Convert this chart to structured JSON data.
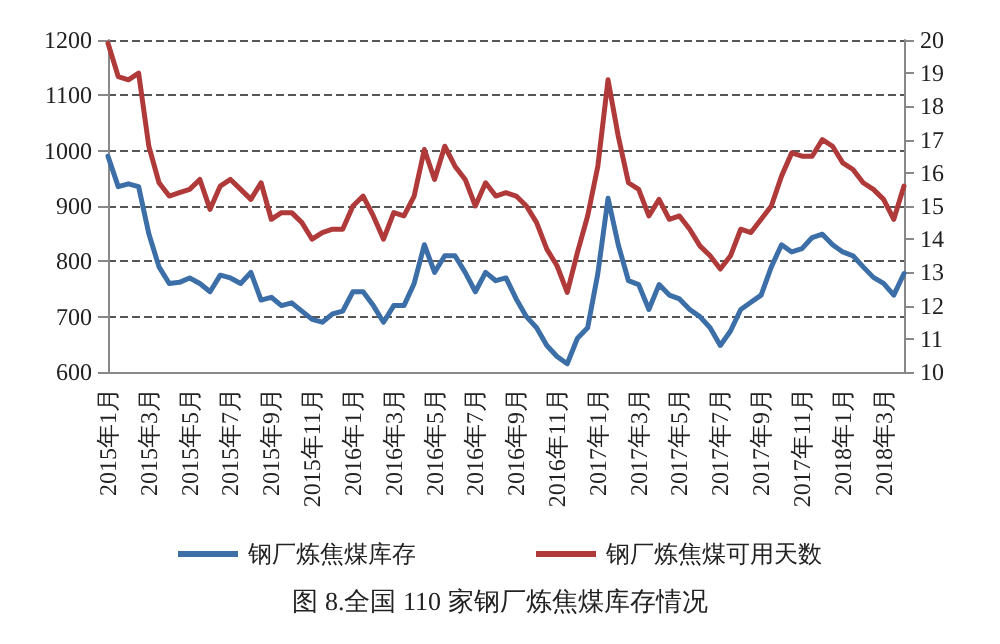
{
  "chart_data": {
    "type": "line",
    "title": "图 8.全国 110 家钢厂炼焦煤库存情况",
    "categories": [
      "2015年1月",
      null,
      null,
      null,
      "2015年3月",
      null,
      null,
      null,
      "2015年5月",
      null,
      null,
      null,
      "2015年7月",
      null,
      null,
      null,
      "2015年9月",
      null,
      null,
      null,
      "2015年11月",
      null,
      null,
      null,
      "2016年1月",
      null,
      null,
      null,
      "2016年3月",
      null,
      null,
      null,
      "2016年5月",
      null,
      null,
      null,
      "2016年7月",
      null,
      null,
      null,
      "2016年9月",
      null,
      null,
      null,
      "2016年11月",
      null,
      null,
      null,
      "2017年1月",
      null,
      null,
      null,
      "2017年3月",
      null,
      null,
      null,
      "2017年5月",
      null,
      null,
      null,
      "2017年7月",
      null,
      null,
      null,
      "2017年9月",
      null,
      null,
      null,
      "2017年11月",
      null,
      null,
      null,
      "2018年1月",
      null,
      null,
      null,
      "2018年3月",
      null,
      null
    ],
    "series": [
      {
        "name": "钢厂炼焦煤库存",
        "color": "#3c6ea8",
        "values": [
          990,
          935,
          940,
          935,
          850,
          790,
          760,
          762,
          770,
          760,
          745,
          775,
          770,
          760,
          780,
          730,
          735,
          720,
          725,
          710,
          695,
          690,
          705,
          710,
          745,
          745,
          720,
          690,
          720,
          720,
          760,
          830,
          780,
          810,
          810,
          780,
          745,
          780,
          765,
          770,
          732,
          700,
          680,
          648,
          628,
          615,
          661,
          680,
          778,
          914,
          830,
          765,
          758,
          713,
          758,
          739,
          732,
          713,
          700,
          680,
          648,
          674,
          713,
          726,
          739,
          790,
          830,
          817,
          823,
          843,
          849,
          830,
          817,
          810,
          790,
          771,
          760,
          739,
          778
        ]
      },
      {
        "name": "钢厂炼焦煤可用天数",
        "color": "#b03a3a",
        "axis": "y2",
        "values": [
          19.9,
          18.9,
          18.8,
          19.0,
          16.8,
          15.7,
          15.3,
          15.4,
          15.5,
          15.8,
          14.9,
          15.6,
          15.8,
          15.5,
          15.2,
          15.7,
          14.6,
          14.8,
          14.8,
          14.5,
          14.0,
          14.2,
          14.3,
          14.3,
          15.0,
          15.3,
          14.7,
          14.0,
          14.8,
          14.7,
          15.3,
          16.7,
          15.8,
          16.8,
          16.2,
          15.8,
          15.0,
          15.7,
          15.3,
          15.4,
          15.3,
          15.0,
          14.5,
          13.7,
          13.2,
          12.4,
          13.6,
          14.7,
          16.2,
          18.8,
          17.1,
          15.7,
          15.5,
          14.7,
          15.2,
          14.6,
          14.7,
          14.3,
          13.8,
          13.5,
          13.1,
          13.5,
          14.3,
          14.2,
          14.6,
          15.0,
          15.9,
          16.6,
          16.5,
          16.5,
          17.0,
          16.8,
          16.3,
          16.1,
          15.7,
          15.5,
          15.2,
          14.6,
          15.6
        ]
      }
    ],
    "ylim": [
      600,
      1200
    ],
    "yticks": [
      600,
      700,
      800,
      900,
      1000,
      1100,
      1200
    ],
    "y2lim": [
      10,
      20
    ],
    "y2ticks": [
      10,
      11,
      12,
      13,
      14,
      15,
      16,
      17,
      18,
      19,
      20
    ],
    "grid": "y",
    "legend": "bottom",
    "marker": "none",
    "line_style": "solid"
  }
}
